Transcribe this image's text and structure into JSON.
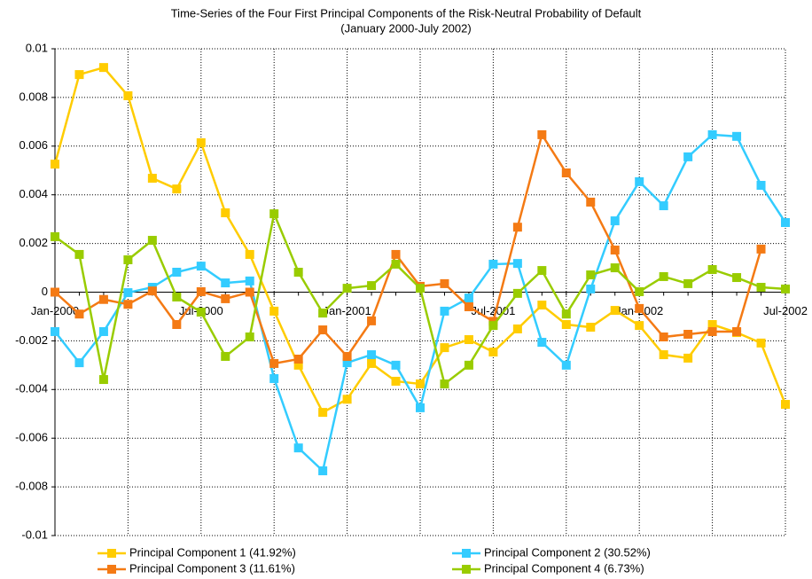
{
  "chart_data": {
    "type": "line",
    "title": "Time-Series of the Four First Principal Components of the Risk-Neutral Probability of Default",
    "subtitle": "(January 2000-July 2002)",
    "categories": [
      "Jan-2000",
      null,
      null,
      null,
      null,
      null,
      "Jul-2000",
      null,
      null,
      null,
      null,
      null,
      "Jan-2001",
      null,
      null,
      null,
      null,
      null,
      "Jul-2001",
      null,
      null,
      null,
      null,
      null,
      "Jan-2002",
      null,
      null,
      null,
      null,
      null,
      "Jul-2002"
    ],
    "ylim": [
      -0.01,
      0.01
    ],
    "yticks": [
      -0.01,
      -0.008,
      -0.006,
      -0.004,
      -0.002,
      0,
      0.002,
      0.004,
      0.006,
      0.008,
      0.01
    ],
    "grid": true,
    "legend": "bottom",
    "series": [
      {
        "name": "Principal Component 1 (41.92%)",
        "color": "#FFCC00",
        "values": [
          0.00526,
          0.00894,
          0.00923,
          0.00807,
          0.00468,
          0.00424,
          0.00614,
          0.00326,
          0.00155,
          -0.00078,
          -0.003,
          -0.00494,
          -0.0044,
          -0.00293,
          -0.00366,
          -0.00377,
          -0.00228,
          -0.00195,
          -0.00246,
          -0.00151,
          -0.00053,
          -0.00133,
          -0.00144,
          -0.00075,
          -0.00137,
          -0.00257,
          -0.00271,
          -0.00133,
          -0.00166,
          -0.00209,
          -0.00461
        ]
      },
      {
        "name": "Principal Component 2 (30.52%)",
        "color": "#33CCFF",
        "values": [
          -0.00162,
          -0.0029,
          -0.00162,
          -2e-05,
          0.0002,
          0.00082,
          0.00107,
          0.00038,
          0.00046,
          -0.00355,
          -0.0064,
          -0.00734,
          -0.0029,
          -0.00257,
          -0.003,
          -0.00475,
          -0.00078,
          -0.00024,
          0.00115,
          0.00118,
          -0.00206,
          -0.003,
          0.00013,
          0.00293,
          0.00454,
          0.00355,
          0.00556,
          0.00647,
          0.0064,
          0.00439,
          0.00286
        ]
      },
      {
        "name": "Principal Component 3 (11.61%)",
        "color": "#F47A14",
        "values": [
          0,
          -0.0009,
          -0.0003,
          -0.0005,
          5e-05,
          -0.00133,
          2e-05,
          -0.00027,
          0,
          -0.00293,
          -0.00275,
          -0.00155,
          -0.00264,
          -0.00118,
          0.00155,
          0.00024,
          0.00035,
          -0.0006,
          -0.0012,
          0.00267,
          0.00647,
          0.0049,
          0.0037,
          0.00173,
          -0.00067,
          -0.00184,
          -0.00173,
          -0.00162,
          -0.00162,
          0.00177,
          null
        ]
      },
      {
        "name": "Principal Component 4 (6.73%)",
        "color": "#99CC00",
        "values": [
          0.00228,
          0.00155,
          -0.00359,
          0.00133,
          0.00213,
          -0.0002,
          -0.00082,
          -0.00264,
          -0.00184,
          0.00322,
          0.00082,
          -0.00086,
          0.00016,
          0.00027,
          0.00115,
          0.00016,
          -0.00377,
          -0.003,
          -0.00137,
          -5e-05,
          0.00089,
          -0.0009,
          0.00071,
          0.001,
          2e-05,
          0.00064,
          0.00035,
          0.00093,
          0.0006,
          0.0002,
          0.00013
        ]
      }
    ]
  }
}
